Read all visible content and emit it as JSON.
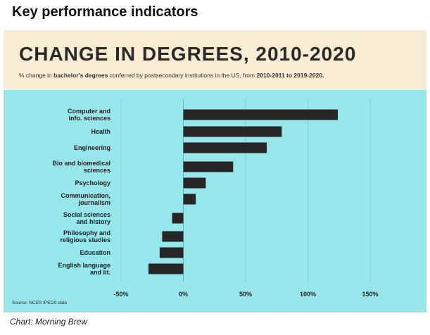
{
  "page": {
    "heading": "Key performance indicators",
    "caption": "Chart: Morning Brew"
  },
  "colors": {
    "header_bg": "#f6ecd4",
    "plot_bg": "#96e6ea",
    "bar": "#262626",
    "title": "#2a2a2a",
    "grid": "#7fcfd3"
  },
  "chart_data": {
    "type": "bar",
    "orientation": "horizontal",
    "title": "CHANGE IN DEGREES, 2010-2020",
    "subtitle_parts": [
      {
        "text": "% change in ",
        "bold": false
      },
      {
        "text": "bachelor's degrees",
        "bold": true
      },
      {
        "text": " conferred by postsecondary institutions in the US, from ",
        "bold": false
      },
      {
        "text": "2010-2011 to 2019-2020.",
        "bold": true
      }
    ],
    "categories": [
      [
        "Computer and",
        "info. sciences"
      ],
      [
        "Health"
      ],
      [
        "Engineering"
      ],
      [
        "Bio and biomedical",
        "sciences"
      ],
      [
        "Psychology"
      ],
      [
        "Communication,",
        "journalism"
      ],
      [
        "Social sciences",
        "and history"
      ],
      [
        "Philosophy and",
        "religious studies"
      ],
      [
        "Education"
      ],
      [
        "English language",
        "and lit."
      ]
    ],
    "values": [
      124,
      79,
      67,
      40,
      18,
      10,
      -9,
      -17,
      -19,
      -28
    ],
    "xlim": [
      -50,
      150
    ],
    "xticks": [
      -50,
      0,
      50,
      100,
      150
    ],
    "xtick_labels": [
      "-50%",
      "0%",
      "50%",
      "100%",
      "150%"
    ],
    "grid": true,
    "source": "Source: NCES IPEDS data"
  }
}
